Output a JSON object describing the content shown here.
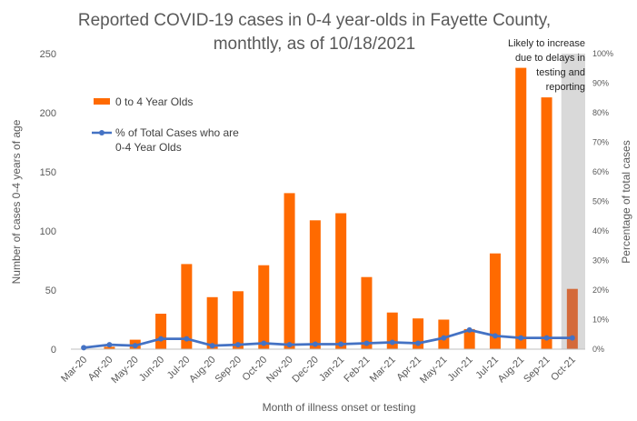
{
  "chart_data": {
    "type": "bar",
    "title_lines": [
      "Reported COVID-19 cases in 0-4 year-olds in Fayette County,",
      "monthtly, as of 10/18/2021"
    ],
    "xlabel": "Month of illness onset or testing",
    "ylabel": "Number of cases 0-4 years of age",
    "y2label": "Percentage of total cases",
    "categories": [
      "Mar-20",
      "Apr-20",
      "May-20",
      "Jun-20",
      "Jul-20",
      "Aug-20",
      "Sep-20",
      "Oct-20",
      "Nov-20",
      "Dec-20",
      "Jan-21",
      "Feb-21",
      "Mar-21",
      "Apr-21",
      "May-21",
      "Jun-21",
      "Jul-21",
      "Aug-21",
      "Sep-21",
      "Oct-21"
    ],
    "ylim": [
      0,
      250
    ],
    "yticks": [
      0,
      50,
      100,
      150,
      200,
      250
    ],
    "y2lim": [
      0,
      100
    ],
    "y2ticks": [
      "0%",
      "10%",
      "20%",
      "30%",
      "40%",
      "50%",
      "60%",
      "70%",
      "80%",
      "90%",
      "100%"
    ],
    "series": [
      {
        "name": "0 to 4 Year Olds",
        "kind": "bar",
        "color": "#FF6A00",
        "values": [
          0,
          2,
          8,
          30,
          72,
          44,
          49,
          71,
          132,
          109,
          115,
          61,
          31,
          26,
          25,
          17,
          81,
          238,
          213,
          51
        ]
      },
      {
        "name": "% of Total Cases who are 0-4 Year Olds",
        "legend_lines": [
          "% of Total Cases who are",
          "0-4 Year Olds"
        ],
        "kind": "line",
        "axis": "right",
        "color": "#4472C4",
        "values": [
          0.5,
          1.5,
          1.2,
          3.5,
          3.5,
          1.2,
          1.5,
          2.0,
          1.5,
          1.7,
          1.7,
          2.0,
          2.3,
          2.0,
          3.8,
          6.5,
          4.5,
          3.8,
          3.8,
          3.8
        ]
      }
    ],
    "shaded_month": "Oct-21",
    "shade_color": "#D9D9D9",
    "last_bar_color": "#D46A3A",
    "annotation_lines": [
      "Likely to increase",
      "due to delays in",
      "testing and",
      "reporting"
    ],
    "grid": false,
    "legend_position": "upper-left inside plot"
  }
}
